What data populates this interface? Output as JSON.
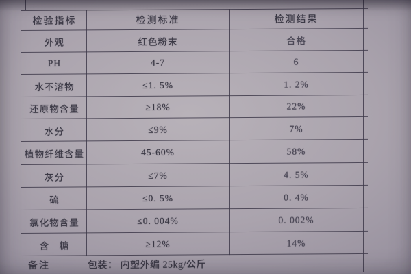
{
  "colors": {
    "paper_light": "#b8b2b9",
    "paper_mid": "#aaa3ad",
    "paper_dark": "#847e8d",
    "line": "#3e3a4a",
    "text": "#3a3844"
  },
  "table": {
    "headers": [
      "检验指标",
      "检测标准",
      "检测结果"
    ],
    "rows": [
      {
        "indicator": "外观",
        "standard": "红色粉末",
        "result": "合格"
      },
      {
        "indicator": "PH",
        "standard": "4-7",
        "result": "6"
      },
      {
        "indicator": "水不溶物",
        "standard": "≤1. 5%",
        "result": "1. 2%"
      },
      {
        "indicator": "还原物含量",
        "standard": "≥18%",
        "result": "22%"
      },
      {
        "indicator": "水分",
        "standard": "≤9%",
        "result": "7%"
      },
      {
        "indicator": "植物纤维含量",
        "standard": "45-60%",
        "result": "58%"
      },
      {
        "indicator": "灰分",
        "standard": "≤7%",
        "result": "4. 5%"
      },
      {
        "indicator": "硫",
        "standard": "≤0. 5%",
        "result": "0. 4%"
      },
      {
        "indicator": "氯化物含量",
        "standard": "≤0. 004%",
        "result": "0. 002%"
      },
      {
        "indicator": "含　糖",
        "standard": "≥12%",
        "result": "14%"
      }
    ],
    "remark": {
      "label": "备注",
      "value": "包装： 内塑外编  25kg/公斤"
    }
  }
}
